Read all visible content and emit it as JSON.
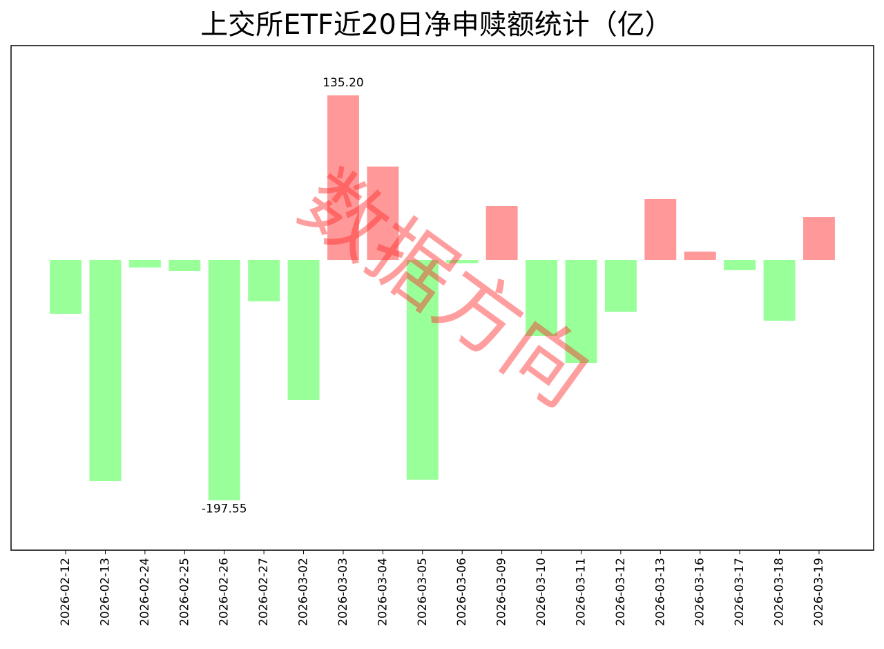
{
  "chart_data": {
    "type": "bar",
    "title": "上交所ETF近20日净申赎额统计（亿）",
    "watermark": "数据方向",
    "categories": [
      "2026-02-12",
      "2026-02-13",
      "2026-02-24",
      "2026-02-25",
      "2026-02-26",
      "2026-02-27",
      "2026-03-02",
      "2026-03-03",
      "2026-03-04",
      "2026-03-05",
      "2026-03-06",
      "2026-03-09",
      "2026-03-10",
      "2026-03-11",
      "2026-03-12",
      "2026-03-13",
      "2026-03-16",
      "2026-03-17",
      "2026-03-18",
      "2026-03-19"
    ],
    "values": [
      -44.3,
      -181.8,
      -6.3,
      -9.1,
      -197.55,
      -34.1,
      -115.3,
      135.2,
      76.7,
      -180.7,
      -2.8,
      44.3,
      -62.5,
      -84.7,
      -42.6,
      50.0,
      6.8,
      -8.5,
      -50.0,
      35.2
    ],
    "value_labels": [
      null,
      null,
      null,
      null,
      "-197.55",
      null,
      null,
      "135.20",
      null,
      null,
      null,
      null,
      null,
      null,
      null,
      null,
      null,
      null,
      null,
      null
    ],
    "colors": {
      "positive": "#ff9999",
      "negative": "#99ff99"
    },
    "ylim": [
      -238.6,
      176.1
    ]
  }
}
